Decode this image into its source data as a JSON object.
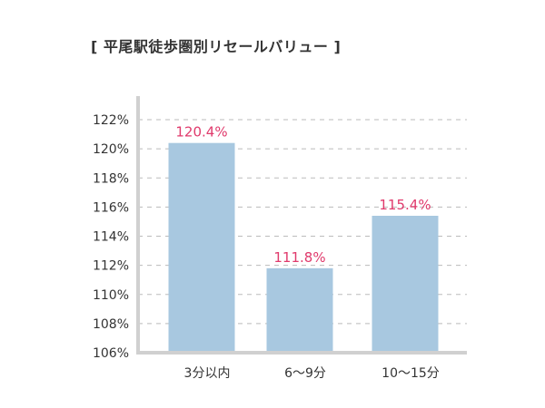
{
  "chart_data": {
    "type": "bar",
    "title": "[ 平尾駅徒歩圏別リセールバリュー ]",
    "xlabel": "",
    "ylabel": "",
    "categories": [
      "3分以内",
      "6～9分",
      "10～15分"
    ],
    "values": [
      120.4,
      111.8,
      115.4
    ],
    "data_labels": [
      "120.4%",
      "111.8%",
      "115.4%"
    ],
    "ylim": [
      106,
      122
    ],
    "yticks": [
      106,
      108,
      110,
      112,
      114,
      116,
      118,
      120,
      122
    ],
    "ytick_labels": [
      "106%",
      "108%",
      "110%",
      "112%",
      "114%",
      "116%",
      "118%",
      "120%",
      "122%"
    ],
    "grid": true,
    "legend": "none",
    "colors": {
      "bar": "#a8c8e0",
      "data_label": "#e03a6c",
      "grid": "#bbbbbb",
      "axis": "#d0d0d0"
    }
  }
}
